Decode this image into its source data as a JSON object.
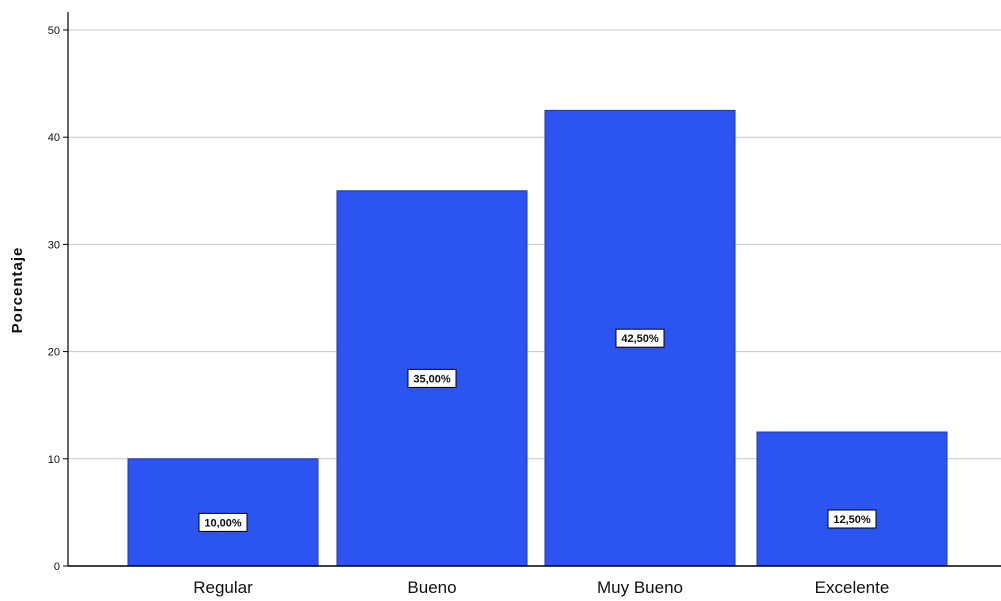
{
  "chart_data": {
    "type": "bar",
    "title": "",
    "xlabel": "",
    "ylabel": "Porcentaje",
    "categories": [
      "Regular",
      "Bueno",
      "Muy Bueno",
      "Excelente"
    ],
    "values": [
      10.0,
      35.0,
      42.5,
      12.5
    ],
    "data_labels": [
      "10,00%",
      "35,00%",
      "42,50%",
      "12,50%"
    ],
    "yticks": [
      "0",
      "10",
      "20",
      "30",
      "40",
      "50"
    ],
    "ylim": [
      0,
      50
    ],
    "grid": true,
    "legend": "none",
    "colors": {
      "bar": "#2b54f2",
      "bar_stroke": "#1a36b8",
      "grid": "#c8c8c8",
      "axis": "#000000"
    }
  }
}
